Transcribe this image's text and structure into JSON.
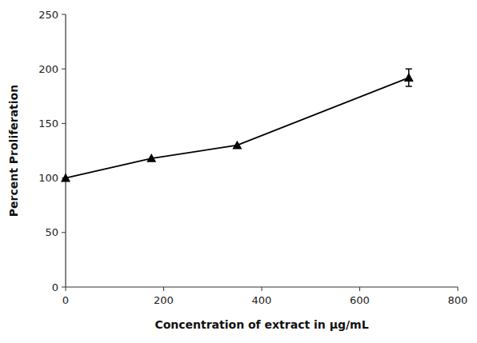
{
  "chart_data": {
    "type": "line",
    "xlabel": "Concentration of extract in μg/mL",
    "ylabel": "Percent Proliferation",
    "x": [
      0,
      175,
      350,
      700
    ],
    "values": [
      100,
      118,
      130,
      192
    ],
    "errors": [
      0,
      0,
      0,
      8
    ],
    "xlim": [
      0,
      800
    ],
    "ylim": [
      0,
      250
    ],
    "xticks": [
      0,
      200,
      400,
      600,
      800
    ],
    "yticks": [
      0,
      50,
      100,
      150,
      200,
      250
    ],
    "color": "#000000",
    "marker": "triangle",
    "grid": false
  }
}
